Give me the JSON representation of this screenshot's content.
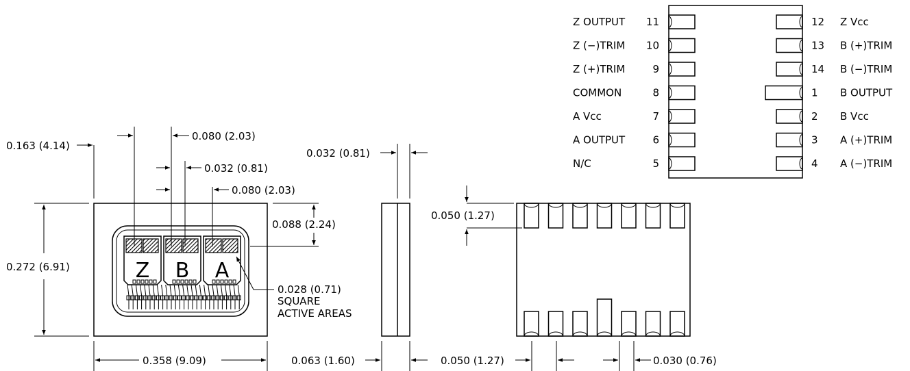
{
  "top_view": {
    "chip_letters": [
      "Z",
      "B",
      "A"
    ]
  },
  "dimensions": {
    "top_offset": "0.163 (4.14)",
    "pitch_a": "0.080 (2.03)",
    "active_width": "0.032 (0.81)",
    "pitch_b": "0.080 (2.03)",
    "row_height": "0.088 (2.24)",
    "height": "0.272 (6.91)",
    "width": "0.358 (9.09)",
    "active_area_line1": "0.028 (0.71)",
    "active_area_line2": "SQUARE",
    "active_area_line3": "ACTIVE AREAS",
    "side_lead": "0.032 (0.81)",
    "side_thickness": "0.063 (1.60)",
    "lead_length": "0.050 (1.27)",
    "lead_pitch": "0.050 (1.27)",
    "lead_width": "0.030 (0.76)"
  },
  "pinout": {
    "left": [
      {
        "name": "Z OUTPUT",
        "num": "11"
      },
      {
        "name": "Z (−)TRIM",
        "num": "10"
      },
      {
        "name": "Z (+)TRIM",
        "num": "9"
      },
      {
        "name": "COMMON",
        "num": "8"
      },
      {
        "name": "A Vcc",
        "num": "7"
      },
      {
        "name": "A OUTPUT",
        "num": "6"
      },
      {
        "name": "N/C",
        "num": "5"
      }
    ],
    "right": [
      {
        "num": "12",
        "name": "Z Vcc"
      },
      {
        "num": "13",
        "name": "B (+)TRIM"
      },
      {
        "num": "14",
        "name": "B (−)TRIM"
      },
      {
        "num": "1",
        "name": "B OUTPUT"
      },
      {
        "num": "2",
        "name": "B Vcc"
      },
      {
        "num": "3",
        "name": "A (+)TRIM"
      },
      {
        "num": "4",
        "name": "A (−)TRIM"
      }
    ]
  }
}
